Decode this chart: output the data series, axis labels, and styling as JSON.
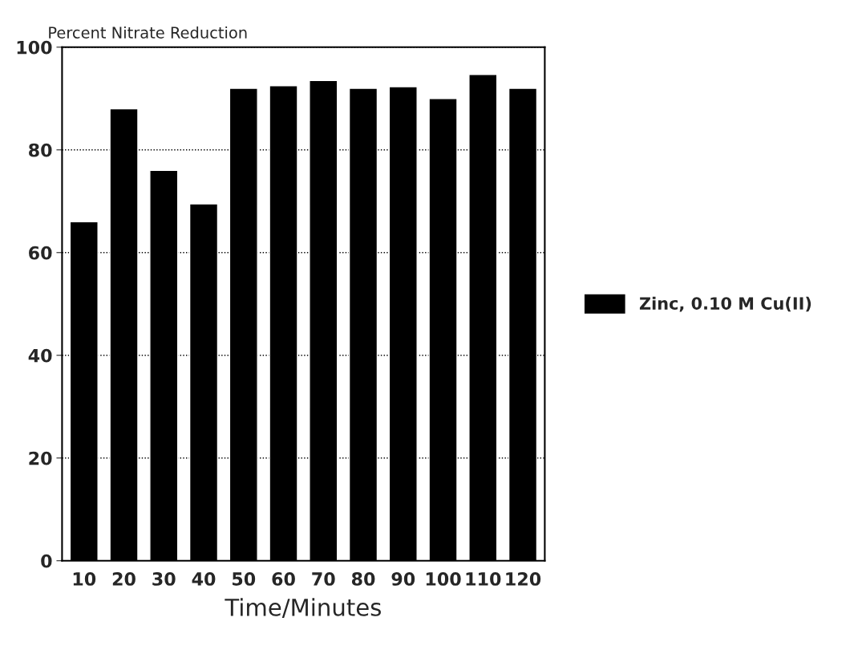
{
  "chart_data": {
    "type": "bar",
    "title": "Percent Nitrate Reduction",
    "xlabel": "Time/Minutes",
    "categories": [
      "10",
      "20",
      "30",
      "40",
      "50",
      "60",
      "70",
      "80",
      "90",
      "100",
      "110",
      "120"
    ],
    "series": [
      {
        "name": "Zinc, 0.10 M Cu(II)",
        "color": "#000000",
        "values": [
          66,
          88,
          76,
          69.5,
          92,
          92.5,
          93.5,
          92,
          92.3,
          90,
          94.7,
          92
        ]
      }
    ],
    "ylim": [
      0,
      100
    ],
    "yticks": [
      0,
      20,
      40,
      60,
      80,
      100
    ],
    "grid": "y",
    "legend": "right"
  }
}
